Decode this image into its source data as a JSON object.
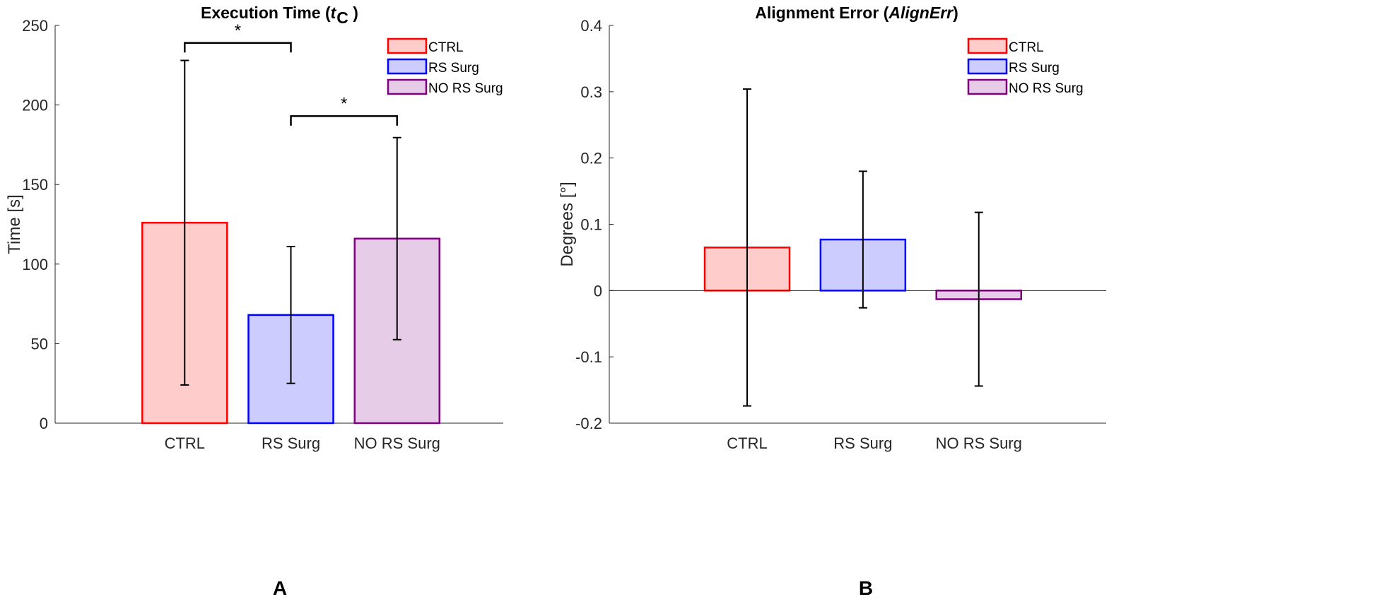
{
  "chart_data": [
    {
      "type": "bar",
      "title": "Execution Time (",
      "title_italic": "t",
      "title_sub": "C",
      "title_end": " )",
      "panel_label": "A",
      "xlabel": "",
      "ylabel": "Time [s]",
      "categories": [
        "CTRL",
        "RS Surg",
        "NO RS Surg"
      ],
      "values": [
        126,
        68,
        116
      ],
      "errors": [
        102,
        43,
        63.5
      ],
      "ylim": [
        0,
        250
      ],
      "xlim": [
        -0.22,
        4.0
      ],
      "yticks": [
        0,
        50,
        100,
        150,
        200,
        250
      ],
      "ytick_labels": [
        "0",
        "50",
        "100",
        "150",
        "200",
        "250"
      ],
      "zero_line": false,
      "significance": [
        {
          "from": 1,
          "to": 2,
          "y": 239,
          "leg": 233,
          "label": "*"
        },
        {
          "from": 2,
          "to": 3,
          "y": 193,
          "leg": 187,
          "label": "*"
        }
      ],
      "legend": [
        "CTRL",
        "RS Surg",
        "NO RS Surg"
      ],
      "legend_placement": "top-right"
    },
    {
      "type": "bar",
      "title": "Alignment Error (",
      "title_italic": "AlignErr",
      "title_sub": "",
      "title_end": ")",
      "panel_label": "B",
      "xlabel": "",
      "ylabel": "Degrees [°]",
      "categories": [
        "CTRL",
        "RS Surg",
        "NO RS Surg"
      ],
      "values": [
        0.065,
        0.077,
        -0.013
      ],
      "errors": [
        0.239,
        0.103,
        0.131
      ],
      "ylim": [
        -0.2,
        0.4
      ],
      "xlim": [
        -0.19,
        4.1
      ],
      "yticks": [
        -0.2,
        -0.1,
        0,
        0.1,
        0.2,
        0.3,
        0.4
      ],
      "ytick_labels": [
        "-0.2",
        "-0.1",
        "0",
        "0.1",
        "0.2",
        "0.3",
        "0.4"
      ],
      "zero_line": true,
      "significance": [],
      "legend": [
        "CTRL",
        "RS Surg",
        "NO RS Surg"
      ],
      "legend_placement": "top-right"
    }
  ],
  "colors": {
    "edges": [
      "#ff0000",
      "#0000ff",
      "#800080"
    ],
    "fills": [
      "#ffcccc",
      "#ccccff",
      "#e6cce6"
    ]
  }
}
